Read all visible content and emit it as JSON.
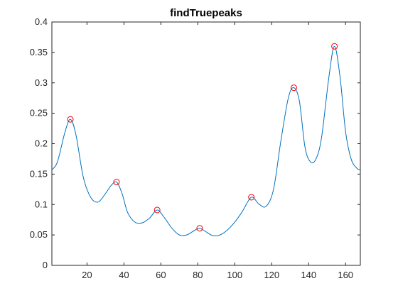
{
  "chart_data": {
    "type": "line",
    "title": "findTruepeaks",
    "xlabel": "",
    "ylabel": "",
    "xlim": [
      1,
      168
    ],
    "ylim": [
      0,
      0.4
    ],
    "xticks": [
      20,
      40,
      60,
      80,
      100,
      120,
      140,
      160
    ],
    "yticks": [
      0,
      0.05,
      0.1,
      0.15,
      0.2,
      0.25,
      0.3,
      0.35,
      0.4
    ],
    "ytick_labels": [
      "0",
      "0.05",
      "0.1",
      "0.15",
      "0.2",
      "0.25",
      "0.3",
      "0.35",
      "0.4"
    ],
    "grid": false,
    "series": [
      {
        "color": "#0072BD",
        "x": [
          1,
          4,
          8,
          11,
          14,
          18,
          22,
          26,
          30,
          33,
          36,
          39,
          42,
          46,
          50,
          54,
          58,
          62,
          66,
          70,
          74,
          78,
          81,
          84,
          88,
          92,
          96,
          100,
          104,
          109,
          113,
          117,
          121,
          125,
          129,
          132,
          135,
          138,
          141,
          144,
          147,
          151,
          154,
          157,
          160,
          163,
          166,
          168
        ],
        "y": [
          0.157,
          0.17,
          0.218,
          0.24,
          0.215,
          0.145,
          0.112,
          0.104,
          0.118,
          0.131,
          0.137,
          0.118,
          0.087,
          0.071,
          0.07,
          0.078,
          0.091,
          0.078,
          0.061,
          0.05,
          0.05,
          0.057,
          0.061,
          0.056,
          0.049,
          0.05,
          0.058,
          0.071,
          0.088,
          0.112,
          0.101,
          0.097,
          0.125,
          0.205,
          0.275,
          0.292,
          0.27,
          0.195,
          0.17,
          0.175,
          0.21,
          0.31,
          0.36,
          0.31,
          0.22,
          0.175,
          0.16,
          0.157
        ]
      }
    ],
    "peaks": {
      "marker": "circle",
      "color": "#FF0000",
      "x": [
        11,
        36,
        58,
        81,
        109,
        132,
        154
      ],
      "y": [
        0.24,
        0.137,
        0.091,
        0.061,
        0.112,
        0.292,
        0.36
      ]
    }
  }
}
